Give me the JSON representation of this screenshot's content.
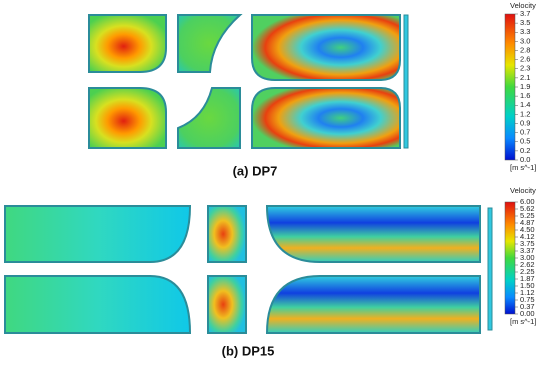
{
  "panels": [
    {
      "caption": "(a) DP7",
      "legend": {
        "title": "Velocity",
        "ticks": [
          "3.7",
          "3.5",
          "3.3",
          "3.0",
          "2.8",
          "2.6",
          "2.3",
          "2.1",
          "1.9",
          "1.6",
          "1.4",
          "1.2",
          "0.9",
          "0.7",
          "0.5",
          "0.2",
          "0.0"
        ],
        "unit": "[m s^-1]"
      }
    },
    {
      "caption": "(b) DP15",
      "legend": {
        "title": "Velocity",
        "ticks": [
          "6.00",
          "5.62",
          "5.25",
          "4.87",
          "4.50",
          "4.12",
          "3.75",
          "3.37",
          "3.00",
          "2.62",
          "2.25",
          "1.87",
          "1.50",
          "1.12",
          "0.75",
          "0.37",
          "0.00"
        ],
        "unit": "[m s^-1]"
      }
    }
  ]
}
